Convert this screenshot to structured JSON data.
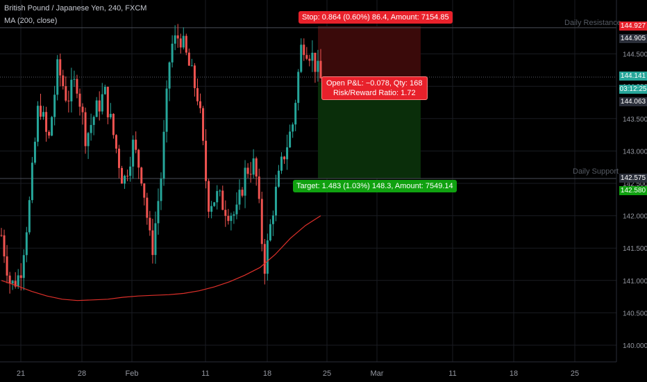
{
  "legend": {
    "symbol_line": "British Pound / Japanese Yen, 240, FXCM",
    "ma_line": "MA (200, close)"
  },
  "levels": {
    "resistance_label": "Daily Resistance",
    "support_label": "Daily Support",
    "resistance_price": 144.905,
    "support_price": 142.575
  },
  "position": {
    "stop_text": "Stop: 0.864 (0.60%) 86.4, Amount: 7154.85",
    "pnl_line1": "Open P&L: −0.078, Qty: 168",
    "pnl_line2": "Risk/Reward Ratio: 1.72",
    "target_text": "Target: 1.483 (1.03%) 148.3, Amount: 7549.14",
    "entry": 144.063,
    "stop": 144.927,
    "target": 142.58
  },
  "price_tags": [
    {
      "value": "144.927",
      "color": "#e8212b"
    },
    {
      "value": "144.905",
      "color": "#2a2e39"
    },
    {
      "value": "144.141",
      "color": "#26a69a"
    },
    {
      "value": "03:12:25",
      "color": "#26a69a"
    },
    {
      "value": "144.063",
      "color": "#2a2e39"
    },
    {
      "value": "142.575",
      "color": "#2a2e39"
    },
    {
      "value": "142.580",
      "color": "#10a110"
    }
  ],
  "colors": {
    "up": "#26a69a",
    "down": "#ef5350",
    "ma": "#e0302a",
    "grid": "#1a1c22"
  },
  "chart_data": {
    "type": "candlestick",
    "title": "British Pound / Japanese Yen, 240, FXCM",
    "ylim": [
      139.8,
      145.2
    ],
    "y_ticks": [
      140.0,
      140.5,
      141.0,
      141.5,
      142.0,
      142.5,
      143.0,
      143.5,
      144.0,
      144.5
    ],
    "x_ticks": [
      "21",
      "28",
      "Feb",
      "11",
      "18",
      "25",
      "Mar",
      "11",
      "18",
      "25"
    ],
    "last_price": 144.141,
    "series": [
      {
        "name": "MA (200, close)",
        "type": "line",
        "values": [
          141.0,
          140.92,
          140.83,
          140.76,
          140.71,
          140.69,
          140.7,
          140.71,
          140.74,
          140.76,
          140.77,
          140.78,
          140.8,
          140.84,
          140.9,
          140.98,
          141.08,
          141.2,
          141.4,
          141.65,
          141.85,
          142.0
        ]
      },
      {
        "name": "price",
        "type": "close_path",
        "values": [
          141.7,
          140.9,
          141.1,
          142.2,
          143.8,
          143.1,
          144.3,
          143.8,
          144.1,
          143.2,
          143.6,
          143.9,
          143.2,
          142.5,
          143.1,
          142.6,
          141.4,
          142.6,
          144.6,
          144.8,
          144.3,
          143.8,
          142.2,
          142.3,
          142.1,
          142.0,
          142.7,
          142.8,
          141.2,
          142.2,
          142.9,
          143.4,
          144.7,
          144.5,
          144.1
        ]
      }
    ]
  }
}
